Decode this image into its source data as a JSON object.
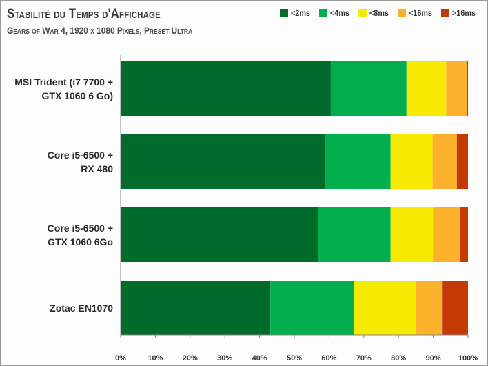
{
  "chart_data": {
    "type": "bar",
    "orientation": "horizontal",
    "stacked": true,
    "title": "Stabilité du Temps d'Affichage",
    "subtitle": "Gears of War 4, 1920 x 1080 Pixels, Preset Ultra",
    "categories": [
      "MSI Trident (i7 7700 +\nGTX 1060 6 Go)",
      "Core i5-6500 +\nRX 480",
      "Core i5-6500 +\nGTX 1060 6Go",
      "Zotac EN1070"
    ],
    "series": [
      {
        "name": "<2ms",
        "color": "#006b2b",
        "values": [
          60.5,
          58.8,
          56.8,
          43.1
        ]
      },
      {
        "name": "<4ms",
        "color": "#00ae4d",
        "values": [
          21.8,
          18.9,
          20.9,
          24.0
        ]
      },
      {
        "name": "<8ms",
        "color": "#f6ea00",
        "values": [
          11.4,
          12.1,
          12.2,
          18.0
        ]
      },
      {
        "name": "<16ms",
        "color": "#fbb12a",
        "values": [
          6.1,
          7.0,
          7.8,
          7.4
        ]
      },
      {
        "name": ">16ms",
        "color": "#c33a06",
        "values": [
          0.2,
          3.2,
          2.3,
          7.5
        ]
      }
    ],
    "xlim": [
      0,
      100
    ],
    "xticks": [
      "0%",
      "10%",
      "20%",
      "30%",
      "40%",
      "50%",
      "60%",
      "70%",
      "80%",
      "90%",
      "100%"
    ],
    "legend_position": "top-right",
    "grid": false
  }
}
